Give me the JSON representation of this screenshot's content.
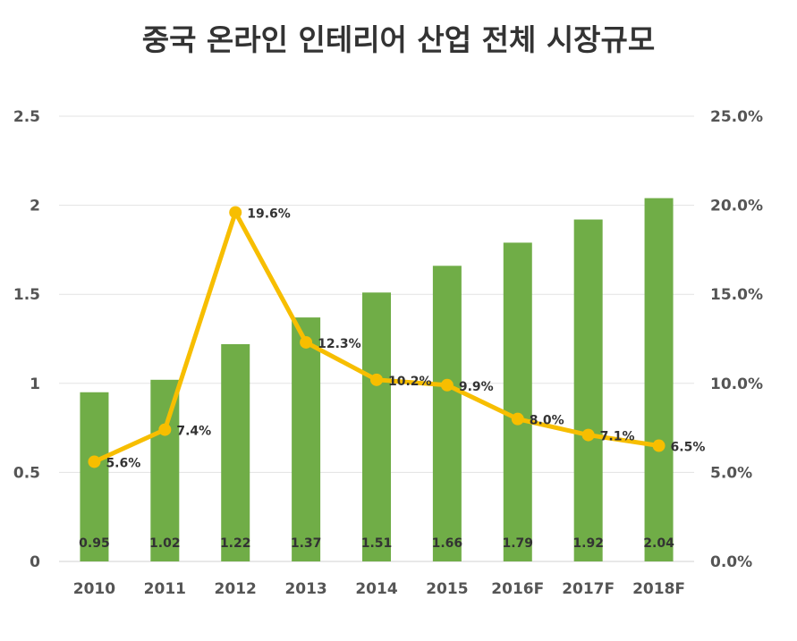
{
  "chart_data": {
    "type": "bar+line",
    "title": "중국 온라인 인테리어 산업 전체 시장규모",
    "categories": [
      "2010",
      "2011",
      "2012",
      "2013",
      "2014",
      "2015",
      "2016F",
      "2017F",
      "2018F"
    ],
    "series": [
      {
        "type": "bar",
        "axis": "left",
        "values": [
          0.95,
          1.02,
          1.22,
          1.37,
          1.51,
          1.66,
          1.79,
          1.92,
          2.04
        ],
        "data_labels": [
          "0.95",
          "1.02",
          "1.22",
          "1.37",
          "1.51",
          "1.66",
          "1.79",
          "1.92",
          "2.04"
        ]
      },
      {
        "type": "line",
        "axis": "right",
        "values": [
          5.6,
          7.4,
          19.6,
          12.3,
          10.2,
          9.9,
          8.0,
          7.1,
          6.5
        ],
        "data_labels": [
          "5.6%",
          "7.4%",
          "19.6%",
          "12.3%",
          "10.2%",
          "9.9%",
          "8.0%",
          "7.1%",
          "6.5%"
        ]
      }
    ],
    "left_axis": {
      "range": [
        0,
        2.5
      ],
      "ticks": [
        "0",
        "0.5",
        "1",
        "1.5",
        "2",
        "2.5"
      ]
    },
    "right_axis": {
      "range": [
        0,
        25
      ],
      "ticks": [
        "0.0%",
        "5.0%",
        "10.0%",
        "15.0%",
        "20.0%",
        "25.0%"
      ]
    },
    "grid": true,
    "colors": {
      "bar": "#70AD47",
      "line": "#F7BE00"
    }
  }
}
